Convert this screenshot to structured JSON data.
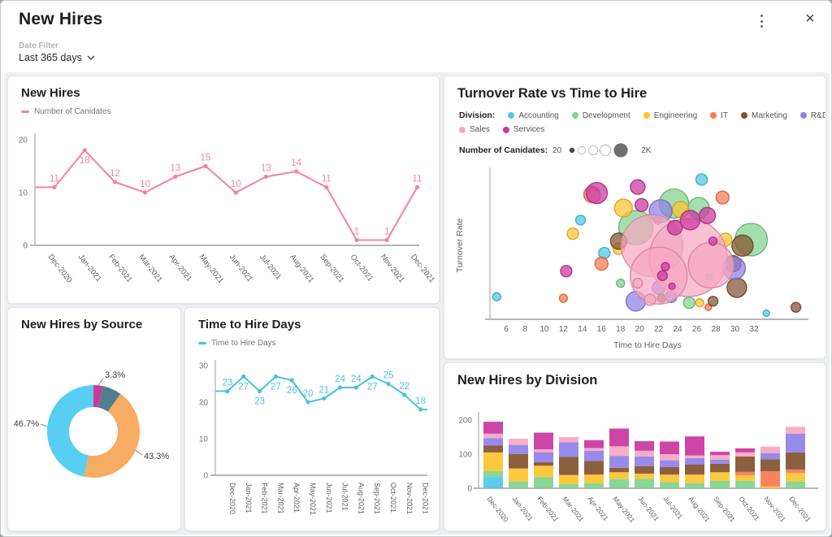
{
  "header": {
    "title": "New Hires",
    "menu_icon": "kebab-vertical",
    "close_glyph": "×",
    "date_filter": {
      "label": "Date Filter",
      "value": "Last 365 days"
    }
  },
  "cards": {
    "new_hires": {
      "title": "New Hires",
      "legend": "Number of Canidates"
    },
    "turnover": {
      "title": "Turnover Rate vs Time to Hire",
      "division_label": "Division:",
      "size_label": "Number of Canidates:",
      "size_min": "20",
      "size_max": "2K"
    },
    "by_source": {
      "title": "New Hires by Source"
    },
    "tth": {
      "title": "Time to Hire Days",
      "legend": "Time to Hire Days"
    },
    "by_division": {
      "title": "New Hires by Division"
    }
  },
  "colors": {
    "divisions": {
      "Accounting": "#4EC8E9",
      "Development": "#7FD38C",
      "Engineering": "#FDC32E",
      "IT": "#FA7850",
      "Marketing": "#82522F",
      "R&D": "#8F80E8",
      "Sales": "#F7A6C1",
      "Services": "#C936A0"
    },
    "new_hires_line": "#F8809F",
    "tth_line": "#4BC2DE",
    "axis": "#b5b5b5",
    "tick_text": "#757575"
  },
  "chart_data": [
    {
      "id": "new_hires",
      "type": "line",
      "title": "New Hires",
      "series_name": "Number of Canidates",
      "categories": [
        "Dec-2020",
        "Jan-2021",
        "Feb-2021",
        "Mar-2021",
        "Apr-2021",
        "May-2021",
        "Jun-2021",
        "Jul-2021",
        "Aug-2021",
        "Sep-2021",
        "Oct-2021",
        "Nov-2021",
        "Dec-2021"
      ],
      "values": [
        11,
        18,
        12,
        10,
        13,
        15,
        10,
        13,
        14,
        11,
        1,
        1,
        11
      ],
      "ylim": [
        0,
        20
      ],
      "yticks": [
        0,
        10,
        20
      ],
      "color": "#F8809F"
    },
    {
      "id": "turnover_vs_tth",
      "type": "scatter",
      "title": "Turnover Rate vs Time to Hire",
      "xlabel": "Time to Hire Days",
      "ylabel": "Turnover Rate",
      "xticks": [
        6,
        8,
        10,
        12,
        14,
        16,
        18,
        20,
        22,
        24,
        26,
        28,
        30,
        32
      ],
      "xlim": [
        4.5,
        37.5
      ],
      "size_legend": {
        "min_label": "20",
        "max_label": "2K"
      },
      "divisions": [
        "Accounting",
        "Development",
        "Engineering",
        "IT",
        "Marketing",
        "R&D",
        "Sales",
        "Services"
      ],
      "points": [
        [
          23.6,
          77,
          18,
          "Development"
        ],
        [
          26.2,
          74,
          13,
          "Development"
        ],
        [
          19.6,
          61,
          21,
          "Development"
        ],
        [
          31.7,
          53,
          20,
          "Development"
        ],
        [
          18,
          24,
          5,
          "Development"
        ],
        [
          25.2,
          11,
          7,
          "Development"
        ],
        [
          26.5,
          93,
          7,
          "Accounting"
        ],
        [
          13.8,
          66,
          6,
          "Accounting"
        ],
        [
          16.3,
          44,
          7,
          "Accounting"
        ],
        [
          27.3,
          28,
          4,
          "Accounting"
        ],
        [
          5,
          15,
          5,
          "Accounting"
        ],
        [
          33.3,
          4,
          4,
          "Accounting"
        ],
        [
          18.3,
          74,
          11,
          "Engineering"
        ],
        [
          24.3,
          73,
          10,
          "Engineering"
        ],
        [
          13,
          57,
          7,
          "Engineering"
        ],
        [
          29,
          53,
          8,
          "Engineering"
        ],
        [
          17.8,
          47,
          7,
          "Engineering"
        ],
        [
          26.3,
          11,
          5,
          "Engineering"
        ],
        [
          15,
          83,
          10,
          "IT"
        ],
        [
          28.7,
          81,
          8,
          "IT"
        ],
        [
          21.9,
          66,
          5,
          "IT"
        ],
        [
          16,
          37,
          8,
          "IT"
        ],
        [
          12,
          14,
          5,
          "IT"
        ],
        [
          27.2,
          8,
          4,
          "IT"
        ],
        [
          17.8,
          52,
          10,
          "Marketing"
        ],
        [
          30.8,
          49,
          13,
          "Marketing"
        ],
        [
          29.8,
          37,
          10,
          "Marketing"
        ],
        [
          30.2,
          21,
          12,
          "Marketing"
        ],
        [
          22.3,
          14,
          5,
          "Marketing"
        ],
        [
          27.7,
          12,
          6,
          "Marketing"
        ],
        [
          36.4,
          8,
          6,
          "Marketing"
        ],
        [
          22.2,
          72,
          14,
          "R&D"
        ],
        [
          29.9,
          34,
          14,
          "R&D"
        ],
        [
          22,
          21,
          8,
          "R&D"
        ],
        [
          19.6,
          12,
          12,
          "R&D"
        ],
        [
          23.3,
          15,
          7,
          "R&D"
        ],
        [
          15.2,
          82,
          8,
          "Sales"
        ],
        [
          21.3,
          49,
          38,
          "Sales"
        ],
        [
          25.1,
          41,
          48,
          "Sales"
        ],
        [
          22,
          29,
          35,
          "Sales"
        ],
        [
          27.5,
          36,
          28,
          "Sales"
        ],
        [
          19.8,
          24,
          6,
          "Sales"
        ],
        [
          21.1,
          13,
          7,
          "Sales"
        ],
        [
          19.8,
          88,
          9,
          "Services"
        ],
        [
          15.5,
          84,
          13,
          "Services"
        ],
        [
          20.2,
          76,
          8,
          "Services"
        ],
        [
          25.3,
          66,
          12,
          "Services"
        ],
        [
          27.1,
          69,
          10,
          "Services"
        ],
        [
          23.7,
          61,
          9,
          "Services"
        ],
        [
          27.7,
          52,
          5,
          "Services"
        ],
        [
          12.3,
          32,
          7,
          "Services"
        ],
        [
          22.7,
          35,
          5,
          "Services"
        ],
        [
          22.4,
          29,
          6,
          "Services"
        ],
        [
          23.4,
          22,
          4,
          "Services"
        ]
      ]
    },
    {
      "id": "by_source",
      "type": "pie",
      "title": "New Hires by Source",
      "slices": [
        {
          "label": "3.3%",
          "value": 3.3,
          "color": "#C93B97"
        },
        {
          "label": "",
          "value": 6.7,
          "color": "#4E7F8C"
        },
        {
          "label": "43.3%",
          "value": 43.3,
          "color": "#F6AC62"
        },
        {
          "label": "46.7%",
          "value": 46.7,
          "color": "#58CFF2"
        }
      ]
    },
    {
      "id": "time_to_hire",
      "type": "line",
      "title": "Time to Hire Days",
      "series_name": "Time to Hire Days",
      "categories": [
        "Dec-2020",
        "Jan-2021",
        "Feb-2021",
        "Mar-2021",
        "Apr-2021",
        "May-2021",
        "Jun-2021",
        "Jul-2021",
        "Aug-2021",
        "Sep-2021",
        "Oct-2021",
        "Nov-2021",
        "Dec-2021"
      ],
      "values": [
        23,
        27,
        23,
        27,
        26,
        20,
        21,
        24,
        24,
        27,
        25,
        22,
        18
      ],
      "ylim": [
        0,
        30
      ],
      "yticks": [
        0,
        10,
        20,
        30
      ],
      "color": "#4BC2DE"
    },
    {
      "id": "by_division",
      "type": "bar",
      "stacked": true,
      "title": "New Hires by Division",
      "categories": [
        "Dec-2020",
        "Jan-2021",
        "Feb-2021",
        "Mar-2021",
        "Apr-2021",
        "May-2021",
        "Jun-2021",
        "Jul-2021",
        "Aug-2021",
        "Sep-2021",
        "Oct-2021",
        "Nov-2021",
        "Dec-2021"
      ],
      "yticks": [
        0,
        100,
        200
      ],
      "ylim": [
        0,
        200
      ],
      "series": [
        {
          "name": "Accounting",
          "values": [
            33,
            0,
            0,
            0,
            0,
            0,
            0,
            0,
            0,
            0,
            0,
            0,
            0
          ]
        },
        {
          "name": "Development",
          "values": [
            17,
            20,
            33,
            12,
            15,
            27,
            28,
            18,
            15,
            22,
            22,
            0,
            20
          ]
        },
        {
          "name": "Engineering",
          "values": [
            55,
            38,
            33,
            27,
            25,
            20,
            15,
            22,
            25,
            25,
            16,
            5,
            25
          ]
        },
        {
          "name": "IT",
          "values": [
            0,
            0,
            0,
            0,
            0,
            0,
            0,
            0,
            0,
            0,
            10,
            45,
            10
          ]
        },
        {
          "name": "Marketing",
          "values": [
            20,
            42,
            10,
            53,
            40,
            13,
            22,
            22,
            30,
            25,
            45,
            35,
            50
          ]
        },
        {
          "name": "R&D",
          "values": [
            22,
            27,
            30,
            43,
            30,
            35,
            28,
            20,
            18,
            12,
            0,
            18,
            55
          ]
        },
        {
          "name": "Sales",
          "values": [
            13,
            18,
            8,
            15,
            8,
            28,
            17,
            18,
            8,
            13,
            12,
            19,
            20
          ]
        },
        {
          "name": "Services",
          "values": [
            35,
            0,
            49,
            0,
            23,
            52,
            28,
            37,
            56,
            10,
            12,
            0,
            0
          ]
        }
      ]
    }
  ]
}
